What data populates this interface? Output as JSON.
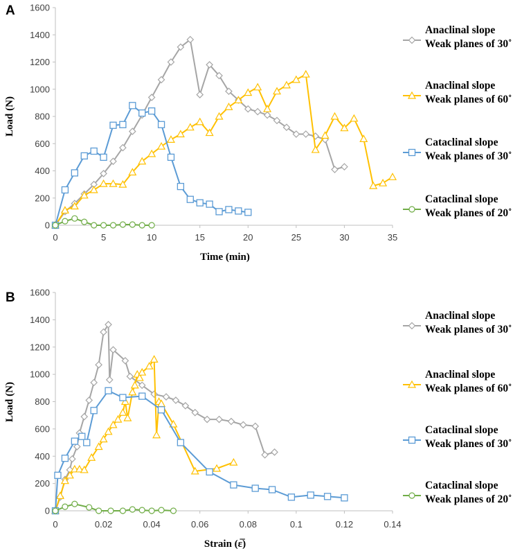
{
  "chart_data": [
    {
      "type": "line",
      "panel": "A",
      "xlabel": "Time (min)",
      "ylabel": "Load (N)",
      "xlim": [
        0,
        35
      ],
      "ylim": [
        0,
        1600
      ],
      "xticks": [
        "0",
        "5",
        "10",
        "15",
        "20",
        "25",
        "30",
        "35"
      ],
      "yticks": [
        "0",
        "200",
        "400",
        "600",
        "800",
        "1000",
        "1200",
        "1400",
        "1600"
      ],
      "series": [
        {
          "name": "Anaclinal slope",
          "name2": "Weak planes of 30˚",
          "color": "#a5a5a5",
          "marker": "diamond",
          "x": [
            0,
            1,
            2,
            3,
            4,
            5,
            6,
            7,
            8,
            9,
            10,
            11,
            12,
            13,
            14,
            15,
            16,
            17,
            18,
            19,
            20,
            21,
            22,
            23,
            24,
            25,
            26,
            27,
            28,
            29,
            30
          ],
          "y": [
            0,
            100,
            160,
            230,
            300,
            380,
            470,
            570,
            690,
            810,
            940,
            1070,
            1200,
            1310,
            1365,
            960,
            1180,
            1100,
            985,
            920,
            855,
            835,
            810,
            770,
            720,
            670,
            670,
            655,
            630,
            410,
            430
          ]
        },
        {
          "name": "Anaclinal slope",
          "name2": "Weak planes of 60˚",
          "color": "#ffc000",
          "marker": "triangle",
          "x": [
            0,
            1,
            2,
            3,
            4,
            5,
            6,
            7,
            8,
            9,
            10,
            11,
            12,
            13,
            14,
            15,
            16,
            17,
            18,
            19,
            20,
            21,
            22,
            23,
            24,
            25,
            26,
            27,
            28,
            29,
            30,
            31,
            32,
            33,
            34,
            35
          ],
          "y": [
            0,
            110,
            140,
            220,
            260,
            305,
            305,
            300,
            390,
            470,
            525,
            580,
            630,
            670,
            720,
            760,
            680,
            800,
            870,
            920,
            975,
            1015,
            855,
            985,
            1030,
            1070,
            1110,
            555,
            660,
            800,
            715,
            785,
            635,
            290,
            310,
            355
          ]
        },
        {
          "name": "Cataclinal slope",
          "name2": "Weak planes of 30˚",
          "color": "#5b9bd5",
          "marker": "square",
          "x": [
            0,
            1,
            2,
            3,
            4,
            5,
            6,
            7,
            8,
            9,
            10,
            11,
            12,
            13,
            14,
            15,
            16,
            17,
            18,
            19,
            20
          ],
          "y": [
            0,
            260,
            385,
            510,
            545,
            500,
            735,
            740,
            880,
            825,
            840,
            740,
            500,
            285,
            190,
            165,
            155,
            100,
            115,
            105,
            95
          ]
        },
        {
          "name": "Cataclinal slope",
          "name2": "Weak planes of 20˚",
          "color": "#70ad47",
          "marker": "circle",
          "x": [
            0,
            1,
            2,
            3,
            4,
            5,
            6,
            7,
            8,
            9,
            10
          ],
          "y": [
            0,
            30,
            50,
            25,
            0,
            0,
            0,
            5,
            5,
            0,
            0
          ]
        }
      ]
    },
    {
      "type": "line",
      "panel": "B",
      "xlabel": "Strain (ε̅)",
      "ylabel": "Load (N)",
      "xlim": [
        0,
        0.14
      ],
      "ylim": [
        0,
        1600
      ],
      "xticks": [
        "0",
        "0.02",
        "0.04",
        "0.06",
        "0.08",
        "0.1",
        "0.12",
        "0.14"
      ],
      "yticks": [
        "0",
        "200",
        "400",
        "600",
        "800",
        "1000",
        "1200",
        "1400",
        "1600"
      ],
      "series": [
        {
          "name": "Anaclinal slope",
          "name2": "Weak planes of 30˚",
          "color": "#a5a5a5",
          "marker": "diamond",
          "x": [
            0,
            0.002,
            0.004,
            0.006,
            0.007,
            0.009,
            0.01,
            0.012,
            0.014,
            0.016,
            0.018,
            0.02,
            0.022,
            0.0225,
            0.024,
            0.029,
            0.031,
            0.036,
            0.041,
            0.046,
            0.05,
            0.054,
            0.058,
            0.063,
            0.068,
            0.073,
            0.078,
            0.083,
            0.087,
            0.091
          ],
          "y": [
            0,
            100,
            230,
            300,
            380,
            470,
            570,
            690,
            810,
            940,
            1070,
            1310,
            1365,
            960,
            1180,
            1100,
            985,
            920,
            855,
            835,
            810,
            770,
            720,
            670,
            670,
            655,
            630,
            620,
            410,
            430
          ]
        },
        {
          "name": "Anaclinal slope",
          "name2": "Weak planes of 60˚",
          "color": "#ffc000",
          "marker": "triangle",
          "x": [
            0,
            0.002,
            0.004,
            0.006,
            0.008,
            0.01,
            0.012,
            0.015,
            0.018,
            0.02,
            0.022,
            0.024,
            0.026,
            0.028,
            0.029,
            0.03,
            0.032,
            0.033,
            0.034,
            0.035,
            0.036,
            0.039,
            0.041,
            0.042,
            0.043,
            0.044,
            0.049,
            0.058,
            0.067,
            0.074
          ],
          "y": [
            0,
            110,
            220,
            260,
            305,
            305,
            300,
            390,
            470,
            525,
            580,
            630,
            670,
            720,
            800,
            680,
            870,
            920,
            1000,
            975,
            1015,
            1060,
            1110,
            555,
            800,
            785,
            635,
            290,
            310,
            355
          ]
        },
        {
          "name": "Cataclinal slope",
          "name2": "Weak planes of 30˚",
          "color": "#5b9bd5",
          "marker": "square",
          "x": [
            0,
            0.001,
            0.004,
            0.008,
            0.011,
            0.013,
            0.016,
            0.022,
            0.028,
            0.036,
            0.044,
            0.052,
            0.064,
            0.074,
            0.083,
            0.09,
            0.098,
            0.106,
            0.113,
            0.12
          ],
          "y": [
            0,
            260,
            385,
            510,
            545,
            500,
            735,
            880,
            830,
            840,
            740,
            500,
            285,
            190,
            165,
            155,
            100,
            115,
            105,
            95
          ]
        },
        {
          "name": "Cataclinal slope",
          "name2": "Weak planes of 20˚",
          "color": "#70ad47",
          "marker": "circle",
          "x": [
            0,
            0.004,
            0.008,
            0.014,
            0.018,
            0.023,
            0.028,
            0.032,
            0.036,
            0.04,
            0.044,
            0.049
          ],
          "y": [
            0,
            30,
            50,
            25,
            0,
            0,
            0,
            10,
            5,
            0,
            5,
            0
          ]
        }
      ]
    }
  ]
}
